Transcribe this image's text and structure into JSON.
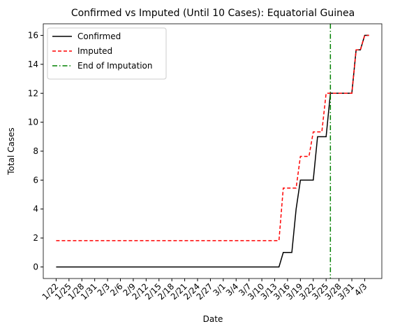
{
  "chart_data": {
    "type": "line",
    "title": "Confirmed vs Imputed (Until 10 Cases): Equatorial Guinea",
    "xlabel": "Date",
    "ylabel": "Total Cases",
    "categories": [
      "1/22",
      null,
      null,
      "1/25",
      null,
      null,
      "1/28",
      null,
      null,
      "1/31",
      null,
      null,
      "2/3",
      null,
      null,
      "2/6",
      null,
      null,
      "2/9",
      null,
      null,
      "2/12",
      null,
      null,
      "2/15",
      null,
      null,
      "2/18",
      null,
      null,
      "2/21",
      null,
      null,
      "2/24",
      null,
      null,
      "2/27",
      null,
      null,
      "3/1",
      null,
      null,
      "3/4",
      null,
      null,
      "3/7",
      null,
      null,
      "3/10",
      null,
      null,
      "3/13",
      null,
      null,
      "3/16",
      null,
      null,
      "3/19",
      null,
      null,
      "3/22",
      null,
      null,
      "3/25",
      null,
      null,
      "3/28",
      null,
      null,
      "3/31",
      null,
      null,
      "4/3",
      null
    ],
    "series": [
      {
        "name": "Confirmed",
        "color": "#000000",
        "linestyle": "solid",
        "values": [
          0,
          0,
          0,
          0,
          0,
          0,
          0,
          0,
          0,
          0,
          0,
          0,
          0,
          0,
          0,
          0,
          0,
          0,
          0,
          0,
          0,
          0,
          0,
          0,
          0,
          0,
          0,
          0,
          0,
          0,
          0,
          0,
          0,
          0,
          0,
          0,
          0,
          0,
          0,
          0,
          0,
          0,
          0,
          0,
          0,
          0,
          0,
          0,
          0,
          0,
          0,
          0,
          0,
          1,
          1,
          1,
          4,
          6,
          6,
          6,
          6,
          9,
          9,
          9,
          12,
          12,
          12,
          12,
          12,
          12,
          15,
          15,
          16,
          16
        ]
      },
      {
        "name": "Imputed",
        "color": "#ff0000",
        "linestyle": "dashed",
        "values": [
          1.82,
          1.82,
          1.82,
          1.82,
          1.82,
          1.82,
          1.82,
          1.82,
          1.82,
          1.82,
          1.82,
          1.82,
          1.82,
          1.82,
          1.82,
          1.82,
          1.82,
          1.82,
          1.82,
          1.82,
          1.82,
          1.82,
          1.82,
          1.82,
          1.82,
          1.82,
          1.82,
          1.82,
          1.82,
          1.82,
          1.82,
          1.82,
          1.82,
          1.82,
          1.82,
          1.82,
          1.82,
          1.82,
          1.82,
          1.82,
          1.82,
          1.82,
          1.82,
          1.82,
          1.82,
          1.82,
          1.82,
          1.82,
          1.82,
          1.82,
          1.82,
          1.82,
          1.82,
          5.45,
          5.45,
          5.45,
          5.45,
          7.64,
          7.64,
          7.64,
          9.33,
          9.33,
          9.33,
          12,
          12,
          12,
          12,
          12,
          12,
          12,
          15,
          15,
          16,
          16
        ]
      }
    ],
    "vline": {
      "name": "End of Imputation",
      "color": "#008000",
      "x": 64
    },
    "xlim": [
      -3,
      76
    ],
    "ylim": [
      -0.8,
      16.8
    ],
    "yticks": [
      0,
      2,
      4,
      6,
      8,
      10,
      12,
      14,
      16
    ],
    "legend": "upper left"
  }
}
